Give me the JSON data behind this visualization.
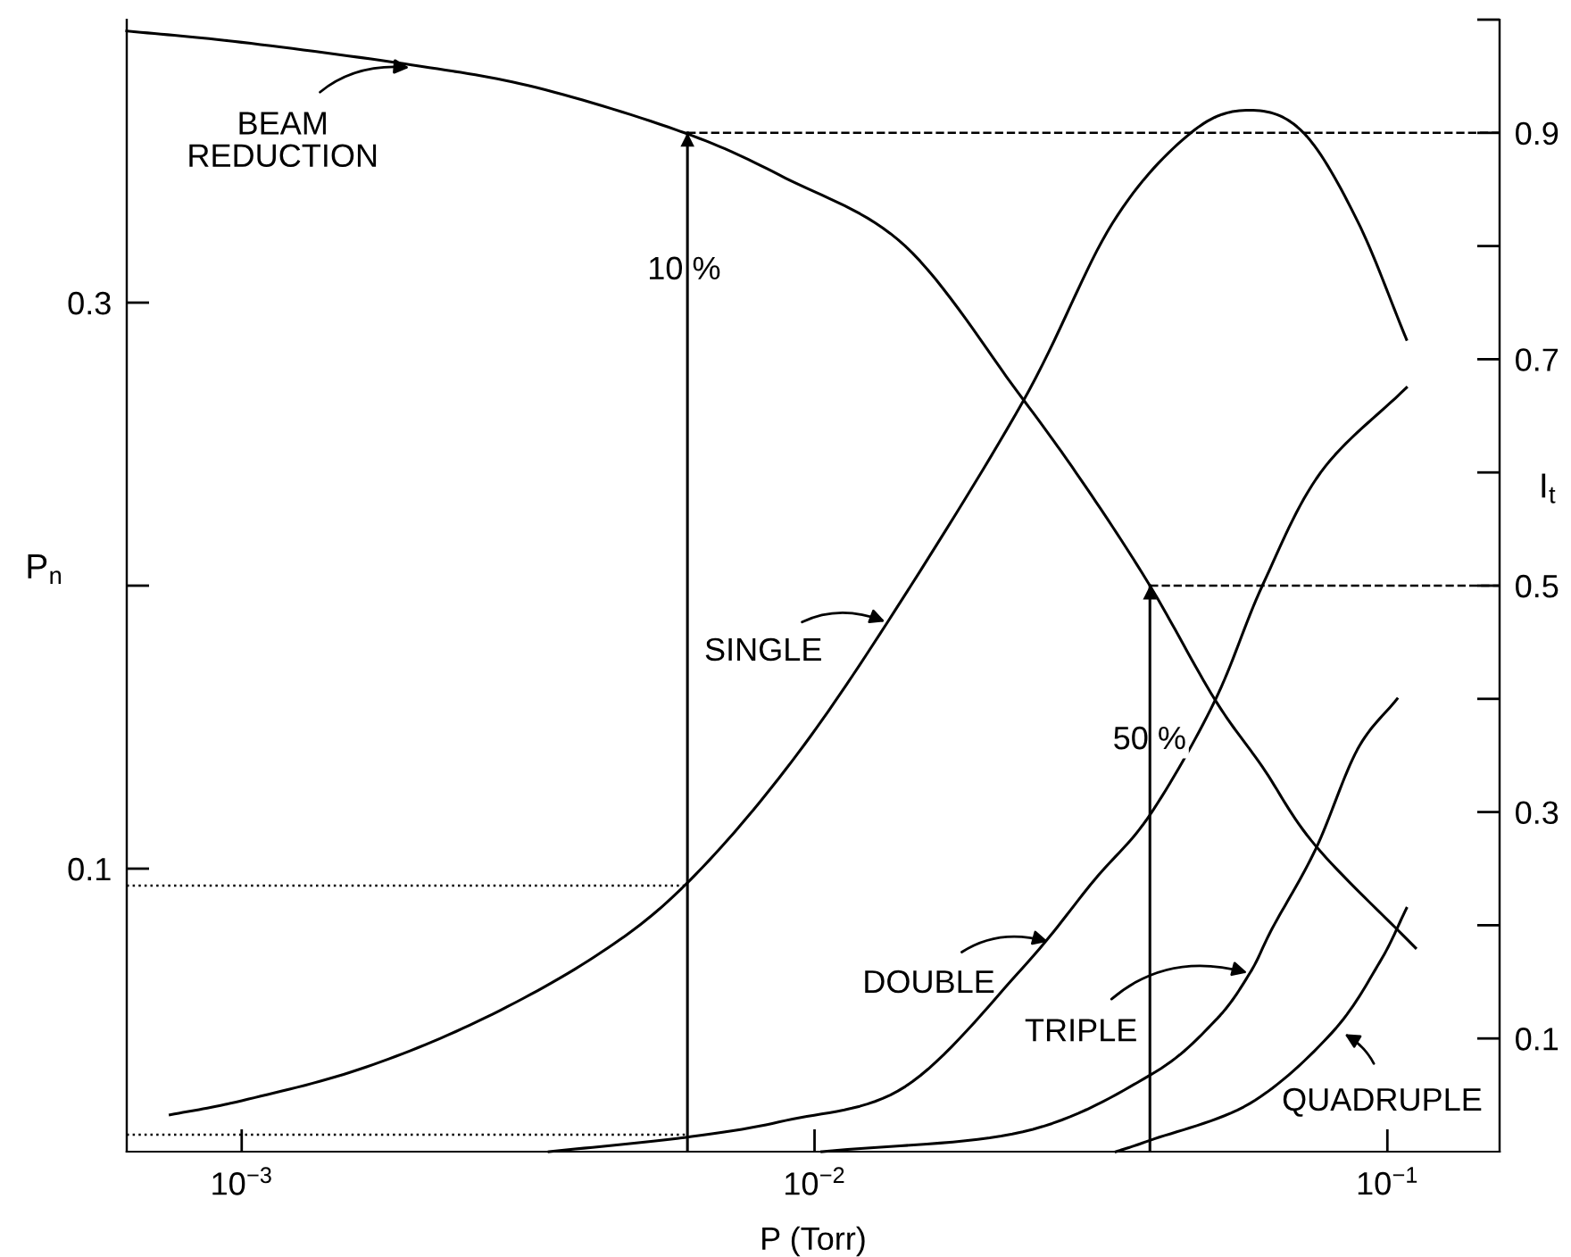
{
  "chart_data": {
    "type": "line",
    "xlabel": "P (Torr)",
    "ylabel": "P$_{n}$",
    "y2label": "I$_{t}$",
    "log": "x",
    "grid": false,
    "legend": false,
    "marker": "none",
    "line_style": "solid",
    "xlim": [
      0.00063,
      0.157
    ],
    "ylim": [
      0,
      0.4
    ],
    "y2lim": [
      0,
      1.0
    ],
    "xticks": [
      {
        "value": 0.001,
        "label": "10$^{−3}$"
      },
      {
        "value": 0.01,
        "label": "10$^{−2}$"
      },
      {
        "value": 0.1,
        "label": "10$^{−1}$"
      }
    ],
    "yticks": [
      0.1,
      {
        "value": 0.2,
        "label": null
      },
      0.3
    ],
    "y2ticks": [
      0.1,
      {
        "value": 0.2,
        "label": null
      },
      0.3,
      {
        "value": 0.4,
        "label": null
      },
      0.5,
      {
        "value": 0.6,
        "label": null
      },
      0.7,
      {
        "value": 0.8,
        "label": null
      },
      0.9,
      {
        "value": 1.0,
        "label": null
      }
    ],
    "series": [
      {
        "axis": "y2",
        "color": "#000000",
        "x": [
          0.00063,
          0.001,
          0.00198,
          0.00327,
          0.00593,
          0.0089,
          0.0144,
          0.0227,
          0.0295,
          0.0385,
          0.0499,
          0.0605,
          0.075,
          0.112
        ],
        "values": [
          0.99,
          0.98,
          0.96,
          0.94,
          0.9,
          0.86,
          0.8,
          0.67,
          0.59,
          0.5,
          0.4,
          0.34,
          0.27,
          0.18
        ]
      },
      {
        "color": "#000000",
        "x": [
          0.00075,
          0.001,
          0.0016,
          0.00258,
          0.00414,
          0.00593,
          0.0089,
          0.0134,
          0.0231,
          0.0331,
          0.0454,
          0.0575,
          0.0714,
          0.0886,
          0.108
        ],
        "values": [
          0.013,
          0.018,
          0.029,
          0.046,
          0.069,
          0.094,
          0.135,
          0.187,
          0.265,
          0.328,
          0.36,
          0.368,
          0.36,
          0.329,
          0.287
        ]
      },
      {
        "color": "#000000",
        "x": [
          0.00344,
          0.00593,
          0.0089,
          0.0144,
          0.0231,
          0.0308,
          0.0385,
          0.0499,
          0.0605,
          0.0765,
          0.108
        ],
        "values": [
          0,
          0.005,
          0.011,
          0.023,
          0.065,
          0.096,
          0.119,
          0.159,
          0.2,
          0.24,
          0.27
        ]
      },
      {
        "color": "#000000",
        "x": [
          0.0103,
          0.0231,
          0.0385,
          0.0499,
          0.0575,
          0.063,
          0.075,
          0.0886,
          0.104
        ],
        "values": [
          0,
          0.007,
          0.027,
          0.046,
          0.063,
          0.079,
          0.107,
          0.142,
          0.16
        ]
      },
      {
        "color": "#000000",
        "x": [
          0.0336,
          0.0385,
          0.0575,
          0.08,
          0.097,
          0.108
        ],
        "values": [
          0,
          0.004,
          0.017,
          0.042,
          0.067,
          0.086
        ]
      }
    ],
    "ref_lines": [
      {
        "axis": "x",
        "value": 0.006
      },
      {
        "axis": "x",
        "value": 0.0385
      },
      {
        "axis": "y2",
        "value": 0.9,
        "line_style": "dashed"
      },
      {
        "axis": "y2",
        "value": 0.5,
        "line_style": "dashed"
      },
      {
        "axis": "y",
        "value": 0.094,
        "line_style": "dotted"
      },
      {
        "axis": "y",
        "value": 0.006,
        "line_style": "dotted"
      }
    ],
    "annotations": [
      {
        "text": "BEAM\nREDUCTION",
        "x": 0.00198,
        "y": 0.383
      },
      {
        "text": "SINGLE",
        "x": 0.0134,
        "y": 0.187
      },
      {
        "text": "DOUBLE",
        "x": 0.0258,
        "y": 0.074
      },
      {
        "text": "TRIPLE",
        "x": 0.0575,
        "y": 0.063
      },
      {
        "text": "QUADRUPLE",
        "x": 0.0835,
        "y": 0.042
      },
      "10 %",
      "50 %"
    ]
  }
}
